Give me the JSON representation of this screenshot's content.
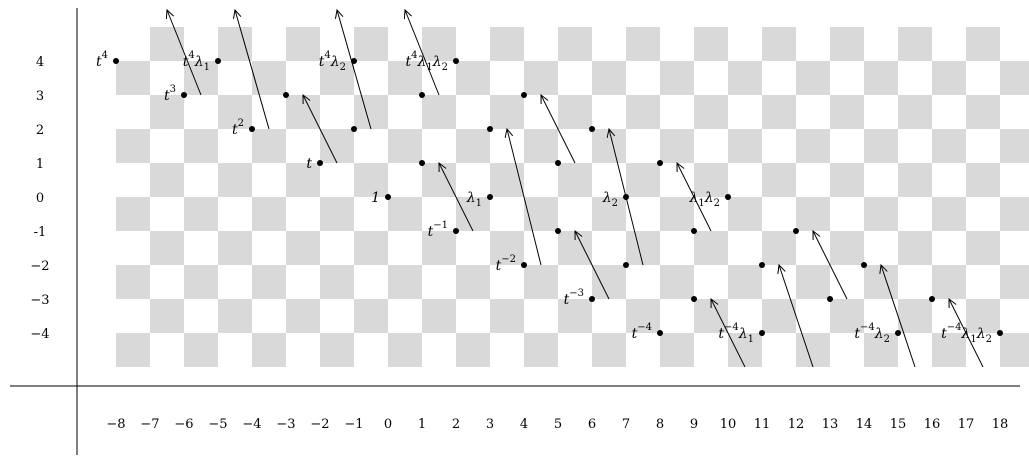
{
  "chart_data": {
    "type": "scatter",
    "title": "",
    "xlabel": "",
    "ylabel": "",
    "xlim": [
      -9,
      19
    ],
    "ylim": [
      -5,
      5
    ],
    "x_ticks": [
      "−8",
      "−7",
      "−6",
      "−5",
      "−4",
      "−3",
      "−2",
      "−1",
      "0",
      "1",
      "2",
      "3",
      "4",
      "5",
      "6",
      "7",
      "8",
      "9",
      "10",
      "11",
      "12",
      "13",
      "14",
      "15",
      "16",
      "17",
      "18"
    ],
    "y_ticks": [
      "4",
      "3",
      "2",
      "1",
      "0",
      "-1",
      "−2",
      "−3",
      "−4"
    ],
    "grid": "checkerboard",
    "labeled_points": [
      {
        "x": -8,
        "y": 4,
        "base": "t",
        "sup": "4",
        "rest": "",
        "side": "left"
      },
      {
        "x": -5,
        "y": 4,
        "base": "t",
        "sup": "4",
        "rest": "λ",
        "sub": "1",
        "side": "left"
      },
      {
        "x": -1,
        "y": 4,
        "base": "t",
        "sup": "4",
        "rest": "λ",
        "sub": "2",
        "side": "left"
      },
      {
        "x": 2,
        "y": 4,
        "base": "t",
        "sup": "4",
        "rest": "λ",
        "sub": "1",
        "rest2": "λ",
        "sub2": "2",
        "side": "left"
      },
      {
        "x": -6,
        "y": 3,
        "base": "t",
        "sup": "3",
        "rest": "",
        "side": "left"
      },
      {
        "x": -4,
        "y": 2,
        "base": "t",
        "sup": "2",
        "rest": "",
        "side": "left"
      },
      {
        "x": -2,
        "y": 1,
        "base": "t",
        "sup": "",
        "rest": "",
        "side": "left"
      },
      {
        "x": 0,
        "y": 0,
        "base": "1",
        "sup": "",
        "rest": "",
        "side": "left",
        "upright": true
      },
      {
        "x": 3,
        "y": 0,
        "base": "λ",
        "sub": "1",
        "sup": "",
        "rest": "",
        "side": "left"
      },
      {
        "x": 7,
        "y": 0,
        "base": "λ",
        "sub": "2",
        "sup": "",
        "rest": "",
        "side": "left"
      },
      {
        "x": 10,
        "y": 0,
        "base": "λ",
        "sub": "1",
        "rest": "λ",
        "sub2": "2",
        "sup": "",
        "side": "left",
        "pair": true
      },
      {
        "x": 2,
        "y": -1,
        "base": "t",
        "sup": "−1",
        "rest": "",
        "side": "left"
      },
      {
        "x": 4,
        "y": -2,
        "base": "t",
        "sup": "−2",
        "rest": "",
        "side": "left"
      },
      {
        "x": 6,
        "y": -3,
        "base": "t",
        "sup": "−3",
        "rest": "",
        "side": "left"
      },
      {
        "x": 8,
        "y": -4,
        "base": "t",
        "sup": "−4",
        "rest": "",
        "side": "left"
      },
      {
        "x": 11,
        "y": -4,
        "base": "t",
        "sup": "−4",
        "rest": "λ",
        "sub": "1",
        "side": "left"
      },
      {
        "x": 15,
        "y": -4,
        "base": "t",
        "sup": "−4",
        "rest": "λ",
        "sub": "2",
        "side": "left"
      },
      {
        "x": 18,
        "y": -4,
        "base": "t",
        "sup": "−4",
        "rest": "λ",
        "sub": "1",
        "rest2": "λ",
        "sub2": "2",
        "side": "left"
      }
    ],
    "plain_points": [
      {
        "x": 1,
        "y": 3
      },
      {
        "x": 4,
        "y": 3
      },
      {
        "x": -1,
        "y": 2
      },
      {
        "x": 3,
        "y": 2
      },
      {
        "x": 6,
        "y": 2
      },
      {
        "x": 1,
        "y": 1
      },
      {
        "x": 5,
        "y": 1
      },
      {
        "x": 8,
        "y": 1
      },
      {
        "x": 5,
        "y": -1
      },
      {
        "x": 9,
        "y": -1
      },
      {
        "x": 12,
        "y": -1
      },
      {
        "x": 7,
        "y": -2
      },
      {
        "x": 11,
        "y": -2
      },
      {
        "x": 14,
        "y": -2
      },
      {
        "x": 9,
        "y": -3
      },
      {
        "x": 13,
        "y": -3
      },
      {
        "x": -3,
        "y": 3
      },
      {
        "x": 16,
        "y": -3
      }
    ],
    "arrows": [
      {
        "from": [
          -6,
          3
        ],
        "to": [
          -7,
          5.5
        ]
      },
      {
        "from": [
          -4,
          2
        ],
        "to": [
          -5,
          5.5
        ]
      },
      {
        "from": [
          -1,
          2
        ],
        "to": [
          -2,
          5.5
        ]
      },
      {
        "from": [
          1,
          3
        ],
        "to": [
          0,
          5.5
        ]
      },
      {
        "from": [
          -2,
          1
        ],
        "to": [
          -3,
          3
        ]
      },
      {
        "from": [
          2,
          -1
        ],
        "to": [
          1,
          1
        ]
      },
      {
        "from": [
          4,
          -2
        ],
        "to": [
          3,
          2
        ]
      },
      {
        "from": [
          5,
          1
        ],
        "to": [
          4,
          3
        ]
      },
      {
        "from": [
          7,
          -2
        ],
        "to": [
          6,
          2
        ]
      },
      {
        "from": [
          9,
          -1
        ],
        "to": [
          8,
          1
        ]
      },
      {
        "from": [
          6,
          -3
        ],
        "to": [
          5,
          -1
        ]
      },
      {
        "from": [
          10,
          -5
        ],
        "to": [
          9,
          -3
        ]
      },
      {
        "from": [
          12,
          -5
        ],
        "to": [
          11,
          -2
        ]
      },
      {
        "from": [
          13,
          -3
        ],
        "to": [
          12,
          -1
        ]
      },
      {
        "from": [
          15,
          -5
        ],
        "to": [
          14,
          -2
        ]
      },
      {
        "from": [
          17,
          -5
        ],
        "to": [
          16,
          -3
        ]
      }
    ]
  }
}
